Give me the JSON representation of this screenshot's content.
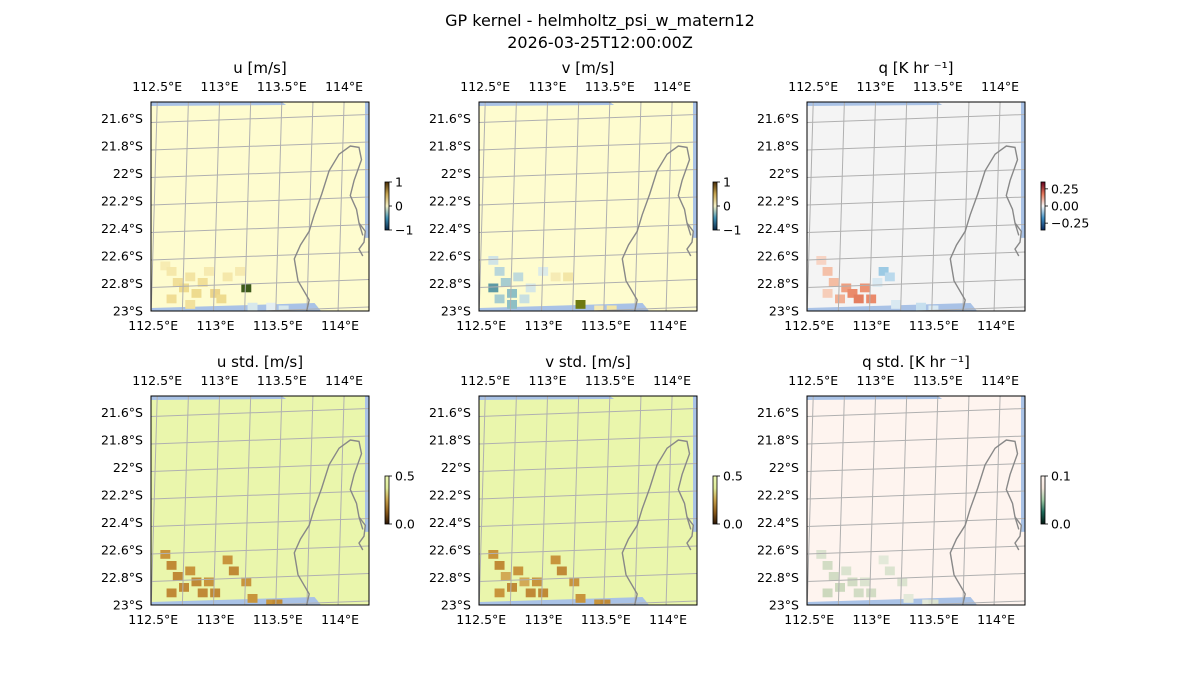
{
  "figure": {
    "title": "GP kernel - helmholtz_psi_w_matern12",
    "subtitle": "2026-03-25T12:00:00Z"
  },
  "chart_data": [
    {
      "type": "heatmap",
      "title": "u [m/s]",
      "fill_color": "#fefccf",
      "x_ticks": [
        "112.5°E",
        "113°E",
        "113.5°E",
        "114°E"
      ],
      "y_ticks": [
        "21.6°S",
        "21.8°S",
        "22°S",
        "22.2°S",
        "22.4°S",
        "22.6°S",
        "22.8°S",
        "23°S"
      ],
      "colorbar": {
        "ticks": [
          "1",
          "0",
          "−1"
        ],
        "range": [
          -1,
          1
        ],
        "colors": [
          "#0b2a4a",
          "#3e8fb2",
          "#f5f1c6",
          "#c6a450",
          "#4a2d06"
        ]
      },
      "cells": [
        {
          "lon": 112.55,
          "lat": -22.66,
          "color": "#f7ecb2"
        },
        {
          "lon": 112.6,
          "lat": -22.7,
          "color": "#f5e8aa"
        },
        {
          "lon": 112.65,
          "lat": -22.78,
          "color": "#f1df98"
        },
        {
          "lon": 112.7,
          "lat": -22.82,
          "color": "#eedb8e"
        },
        {
          "lon": 112.75,
          "lat": -22.74,
          "color": "#f3e4a2"
        },
        {
          "lon": 112.8,
          "lat": -22.86,
          "color": "#eedb8e"
        },
        {
          "lon": 112.85,
          "lat": -22.78,
          "color": "#f1df98"
        },
        {
          "lon": 112.9,
          "lat": -22.7,
          "color": "#f6eab0"
        },
        {
          "lon": 112.6,
          "lat": -22.9,
          "color": "#f0dd94"
        },
        {
          "lon": 112.75,
          "lat": -22.94,
          "color": "#f2e19c"
        },
        {
          "lon": 112.95,
          "lat": -22.86,
          "color": "#ecd58a"
        },
        {
          "lon": 113.0,
          "lat": -22.9,
          "color": "#eedb8e"
        },
        {
          "lon": 113.05,
          "lat": -22.74,
          "color": "#f5e8aa"
        },
        {
          "lon": 113.15,
          "lat": -22.7,
          "color": "#f6eab0"
        },
        {
          "lon": 113.2,
          "lat": -22.82,
          "color": "#3c5a1a"
        },
        {
          "lon": 113.25,
          "lat": -22.96,
          "color": "#d7e8ec"
        },
        {
          "lon": 113.4,
          "lat": -22.96,
          "color": "#e4eef2"
        },
        {
          "lon": 113.5,
          "lat": -22.98,
          "color": "#d7e8ec"
        }
      ]
    },
    {
      "type": "heatmap",
      "title": "v [m/s]",
      "fill_color": "#fefccf",
      "x_ticks": [
        "112.5°E",
        "113°E",
        "113.5°E",
        "114°E"
      ],
      "y_ticks": [
        "21.6°S",
        "21.8°S",
        "22°S",
        "22.2°S",
        "22.4°S",
        "22.6°S",
        "22.8°S",
        "23°S"
      ],
      "colorbar": {
        "ticks": [
          "1",
          "0",
          "−1"
        ],
        "range": [
          -1,
          1
        ],
        "colors": [
          "#0b2a4a",
          "#3e8fb2",
          "#f5f1c6",
          "#c6a450",
          "#4a2d06"
        ]
      },
      "cells": [
        {
          "lon": 112.55,
          "lat": -22.62,
          "color": "#d0e4e6"
        },
        {
          "lon": 112.6,
          "lat": -22.7,
          "color": "#b9d7da"
        },
        {
          "lon": 112.65,
          "lat": -22.78,
          "color": "#a7cdd0"
        },
        {
          "lon": 112.7,
          "lat": -22.86,
          "color": "#8fbfc4"
        },
        {
          "lon": 112.75,
          "lat": -22.74,
          "color": "#bfdadb"
        },
        {
          "lon": 112.55,
          "lat": -22.82,
          "color": "#5e9aa4"
        },
        {
          "lon": 112.6,
          "lat": -22.9,
          "color": "#a7cdd0"
        },
        {
          "lon": 112.8,
          "lat": -22.9,
          "color": "#c8e0e1"
        },
        {
          "lon": 112.85,
          "lat": -22.82,
          "color": "#d6e7e6"
        },
        {
          "lon": 112.7,
          "lat": -22.94,
          "color": "#8fbfc4"
        },
        {
          "lon": 112.95,
          "lat": -22.7,
          "color": "#dcebe8"
        },
        {
          "lon": 113.05,
          "lat": -22.74,
          "color": "#f6ebb5"
        },
        {
          "lon": 113.15,
          "lat": -22.74,
          "color": "#f3e6a6"
        },
        {
          "lon": 113.25,
          "lat": -22.94,
          "color": "#6e7a10"
        },
        {
          "lon": 113.4,
          "lat": -22.98,
          "color": "#f6ebb5"
        },
        {
          "lon": 113.5,
          "lat": -22.98,
          "color": "#f3e6a6"
        }
      ]
    },
    {
      "type": "heatmap",
      "title": "q [K hr ⁻¹]",
      "fill_color": "#f4f4f4",
      "x_ticks": [
        "112.5°E",
        "113°E",
        "113.5°E",
        "114°E"
      ],
      "y_ticks": [
        "21.6°S",
        "21.8°S",
        "22°S",
        "22.2°S",
        "22.4°S",
        "22.6°S",
        "22.8°S",
        "23°S"
      ],
      "colorbar": {
        "ticks": [
          "0.25",
          "0.00",
          "−0.25"
        ],
        "range": [
          -0.35,
          0.35
        ],
        "colors": [
          "#0a2a5e",
          "#3f8fc4",
          "#f7f7f7",
          "#e6775a",
          "#67001f"
        ]
      },
      "cells": [
        {
          "lon": 112.55,
          "lat": -22.62,
          "color": "#f7d4c4"
        },
        {
          "lon": 112.6,
          "lat": -22.7,
          "color": "#f4c0a8"
        },
        {
          "lon": 112.65,
          "lat": -22.78,
          "color": "#f4bda3"
        },
        {
          "lon": 112.75,
          "lat": -22.82,
          "color": "#ef9f80"
        },
        {
          "lon": 112.8,
          "lat": -22.86,
          "color": "#ea8a6b"
        },
        {
          "lon": 112.85,
          "lat": -22.9,
          "color": "#e47e60"
        },
        {
          "lon": 112.7,
          "lat": -22.9,
          "color": "#f1ae92"
        },
        {
          "lon": 112.9,
          "lat": -22.82,
          "color": "#ec9374"
        },
        {
          "lon": 112.95,
          "lat": -22.9,
          "color": "#ea8a6b"
        },
        {
          "lon": 112.6,
          "lat": -22.86,
          "color": "#f6cdb9"
        },
        {
          "lon": 113.05,
          "lat": -22.7,
          "color": "#9ccae4"
        },
        {
          "lon": 113.1,
          "lat": -22.74,
          "color": "#bad9ec"
        },
        {
          "lon": 113.0,
          "lat": -22.78,
          "color": "#d9e9f2"
        },
        {
          "lon": 113.15,
          "lat": -22.94,
          "color": "#d9e9f2"
        },
        {
          "lon": 113.35,
          "lat": -22.96,
          "color": "#c6dfee"
        },
        {
          "lon": 113.45,
          "lat": -22.98,
          "color": "#d9e9f2"
        }
      ]
    },
    {
      "type": "heatmap",
      "title": "u std. [m/s]",
      "fill_color": "#eaf6ac",
      "x_ticks": [
        "112.5°E",
        "113°E",
        "113.5°E",
        "114°E"
      ],
      "y_ticks": [
        "21.6°S",
        "21.8°S",
        "22°S",
        "22.2°S",
        "22.4°S",
        "22.6°S",
        "22.8°S",
        "23°S"
      ],
      "colorbar": {
        "ticks": [
          "0.5",
          "0.0"
        ],
        "range": [
          0,
          0.5
        ],
        "colors": [
          "#2b1606",
          "#8a5a1a",
          "#c6a04a",
          "#e0ec9a",
          "#ecf7b2"
        ]
      },
      "cells": [
        {
          "lon": 112.55,
          "lat": -22.62,
          "color": "#c8953c"
        },
        {
          "lon": 112.6,
          "lat": -22.7,
          "color": "#c08a36"
        },
        {
          "lon": 112.65,
          "lat": -22.78,
          "color": "#c08a36"
        },
        {
          "lon": 112.7,
          "lat": -22.86,
          "color": "#c08a36"
        },
        {
          "lon": 112.75,
          "lat": -22.74,
          "color": "#c8953c"
        },
        {
          "lon": 112.8,
          "lat": -22.82,
          "color": "#c08a36"
        },
        {
          "lon": 112.85,
          "lat": -22.9,
          "color": "#c08a36"
        },
        {
          "lon": 112.6,
          "lat": -22.9,
          "color": "#c08a36"
        },
        {
          "lon": 112.9,
          "lat": -22.82,
          "color": "#c8953c"
        },
        {
          "lon": 112.95,
          "lat": -22.9,
          "color": "#c08a36"
        },
        {
          "lon": 113.05,
          "lat": -22.66,
          "color": "#c8953c"
        },
        {
          "lon": 113.1,
          "lat": -22.74,
          "color": "#c08a36"
        },
        {
          "lon": 113.2,
          "lat": -22.82,
          "color": "#c8953c"
        },
        {
          "lon": 113.25,
          "lat": -22.94,
          "color": "#c8953c"
        },
        {
          "lon": 113.4,
          "lat": -22.98,
          "color": "#c8953c"
        },
        {
          "lon": 113.45,
          "lat": -22.98,
          "color": "#c08a36"
        }
      ]
    },
    {
      "type": "heatmap",
      "title": "v std. [m/s]",
      "fill_color": "#eaf6ac",
      "x_ticks": [
        "112.5°E",
        "113°E",
        "113.5°E",
        "114°E"
      ],
      "y_ticks": [
        "21.6°S",
        "21.8°S",
        "22°S",
        "22.2°S",
        "22.4°S",
        "22.6°S",
        "22.8°S",
        "23°S"
      ],
      "colorbar": {
        "ticks": [
          "0.5",
          "0.0"
        ],
        "range": [
          0,
          0.5
        ],
        "colors": [
          "#2b1606",
          "#8a5a1a",
          "#c6a04a",
          "#e0ec9a",
          "#ecf7b2"
        ]
      },
      "cells": [
        {
          "lon": 112.55,
          "lat": -22.62,
          "color": "#c8953c"
        },
        {
          "lon": 112.6,
          "lat": -22.7,
          "color": "#c08a36"
        },
        {
          "lon": 112.65,
          "lat": -22.78,
          "color": "#d2aa55"
        },
        {
          "lon": 112.7,
          "lat": -22.86,
          "color": "#c08a36"
        },
        {
          "lon": 112.75,
          "lat": -22.74,
          "color": "#c8953c"
        },
        {
          "lon": 112.8,
          "lat": -22.82,
          "color": "#d2aa55"
        },
        {
          "lon": 112.85,
          "lat": -22.9,
          "color": "#c08a36"
        },
        {
          "lon": 112.6,
          "lat": -22.9,
          "color": "#c8953c"
        },
        {
          "lon": 112.9,
          "lat": -22.82,
          "color": "#c8953c"
        },
        {
          "lon": 112.95,
          "lat": -22.9,
          "color": "#c08a36"
        },
        {
          "lon": 113.05,
          "lat": -22.66,
          "color": "#c8953c"
        },
        {
          "lon": 113.1,
          "lat": -22.74,
          "color": "#c08a36"
        },
        {
          "lon": 113.2,
          "lat": -22.82,
          "color": "#c8953c"
        },
        {
          "lon": 113.25,
          "lat": -22.94,
          "color": "#c8953c"
        },
        {
          "lon": 113.4,
          "lat": -22.98,
          "color": "#c8953c"
        },
        {
          "lon": 113.45,
          "lat": -22.98,
          "color": "#c08a36"
        }
      ]
    },
    {
      "type": "heatmap",
      "title": "q std. [K hr ⁻¹]",
      "fill_color": "#fef4ef",
      "x_ticks": [
        "112.5°E",
        "113°E",
        "113.5°E",
        "114°E"
      ],
      "y_ticks": [
        "21.6°S",
        "21.8°S",
        "22°S",
        "22.2°S",
        "22.4°S",
        "22.6°S",
        "22.8°S",
        "23°S"
      ],
      "colorbar": {
        "ticks": [
          "0.1",
          "0.0"
        ],
        "range": [
          0,
          0.1
        ],
        "colors": [
          "#041a14",
          "#1d6a5a",
          "#9ec9a4",
          "#f4e6dc",
          "#fff6f1"
        ]
      },
      "cells": [
        {
          "lon": 112.55,
          "lat": -22.62,
          "color": "#dbe3cf"
        },
        {
          "lon": 112.6,
          "lat": -22.7,
          "color": "#d2dcc4"
        },
        {
          "lon": 112.65,
          "lat": -22.78,
          "color": "#d2dcc4"
        },
        {
          "lon": 112.7,
          "lat": -22.86,
          "color": "#ccd8bd"
        },
        {
          "lon": 112.75,
          "lat": -22.74,
          "color": "#dbe3cf"
        },
        {
          "lon": 112.8,
          "lat": -22.82,
          "color": "#d2dcc4"
        },
        {
          "lon": 112.85,
          "lat": -22.9,
          "color": "#d2dcc4"
        },
        {
          "lon": 112.6,
          "lat": -22.9,
          "color": "#ccd8bd"
        },
        {
          "lon": 112.9,
          "lat": -22.82,
          "color": "#dbe3cf"
        },
        {
          "lon": 112.95,
          "lat": -22.9,
          "color": "#d2dcc4"
        },
        {
          "lon": 113.05,
          "lat": -22.66,
          "color": "#e3e9d9"
        },
        {
          "lon": 113.1,
          "lat": -22.74,
          "color": "#dbe3cf"
        },
        {
          "lon": 113.2,
          "lat": -22.82,
          "color": "#dbe3cf"
        },
        {
          "lon": 113.25,
          "lat": -22.94,
          "color": "#e3e9d9"
        },
        {
          "lon": 113.4,
          "lat": -22.98,
          "color": "#e3e9d9"
        },
        {
          "lon": 113.45,
          "lat": -22.98,
          "color": "#dbe3cf"
        }
      ]
    }
  ]
}
